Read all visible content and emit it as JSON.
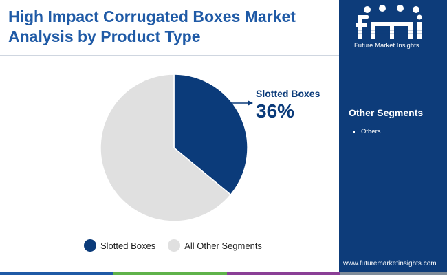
{
  "title": "High Impact Corrugated Boxes Market Analysis by Product Type",
  "colors": {
    "navy": "#0d3c7a",
    "accent_blue": "#1f5aa6",
    "slice_primary": "#0b3b7a",
    "slice_other": "#e0e0e0",
    "bar_green": "#5fb34a",
    "bar_purple": "#8a3f96",
    "bar_grey": "#7f8c9a"
  },
  "chart_data": {
    "type": "pie",
    "categories": [
      "Slotted Boxes",
      "All Other Segments"
    ],
    "values": [
      36,
      64
    ],
    "colors": [
      "#0b3b7a",
      "#e0e0e0"
    ],
    "callout": {
      "label": "Slotted Boxes",
      "value": "36%"
    },
    "legend": [
      "Slotted Boxes",
      "All Other Segments"
    ],
    "legend_position": "bottom"
  },
  "sidebar": {
    "logo_text": "Future Market Insights",
    "logo_icon": "fmi-logo-icon",
    "heading": "Other Segments",
    "items": [
      "Others"
    ],
    "url": "www.futuremarketinsights.com"
  }
}
